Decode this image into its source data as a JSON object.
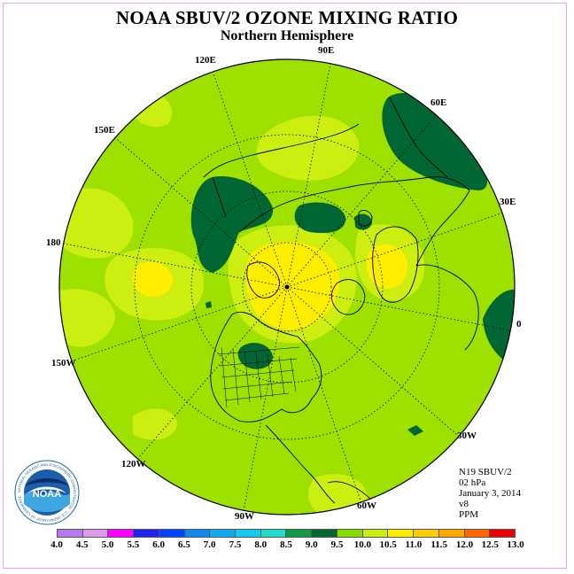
{
  "title": "NOAA SBUV/2 OZONE MIXING RATIO",
  "subtitle": "Northern Hemisphere",
  "longitude_labels": [
    "90E",
    "60E",
    "30E",
    "0",
    "30W",
    "60W",
    "90W",
    "120W",
    "150W",
    "180",
    "150E",
    "120E"
  ],
  "info": {
    "satellite": "N19 SBUV/2",
    "level": "02 hPa",
    "date": "January 3, 2014",
    "version": "v8",
    "units": "PPM"
  },
  "legend": {
    "ticks": [
      "4.0",
      "4.5",
      "5.0",
      "5.5",
      "6.0",
      "6.5",
      "7.0",
      "7.5",
      "8.0",
      "8.5",
      "9.0",
      "9.5",
      "10.0",
      "10.5",
      "11.0",
      "11.5",
      "12.0",
      "12.5",
      "13.0"
    ],
    "colors": [
      "#bb77ee",
      "#dd99ee",
      "#ff00ff",
      "#2222ee",
      "#0044ff",
      "#1188ee",
      "#11aaee",
      "#11ccee",
      "#22ddcc",
      "#119944",
      "#006633",
      "#88dd00",
      "#ccee11",
      "#ffee00",
      "#ffcc00",
      "#ffaa00",
      "#ff6600",
      "#ee0000",
      "#885533"
    ]
  },
  "logo": {
    "text": "NOAA",
    "ring_text": "NATIONAL OCEANIC AND ATMOSPHERIC ADMINISTRATION · U.S. DEPARTMENT OF COMMERCE"
  },
  "map_colors": {
    "base": "#9ee000",
    "light": "#ccee11",
    "yellow": "#ffee00",
    "dark": "#006633"
  }
}
